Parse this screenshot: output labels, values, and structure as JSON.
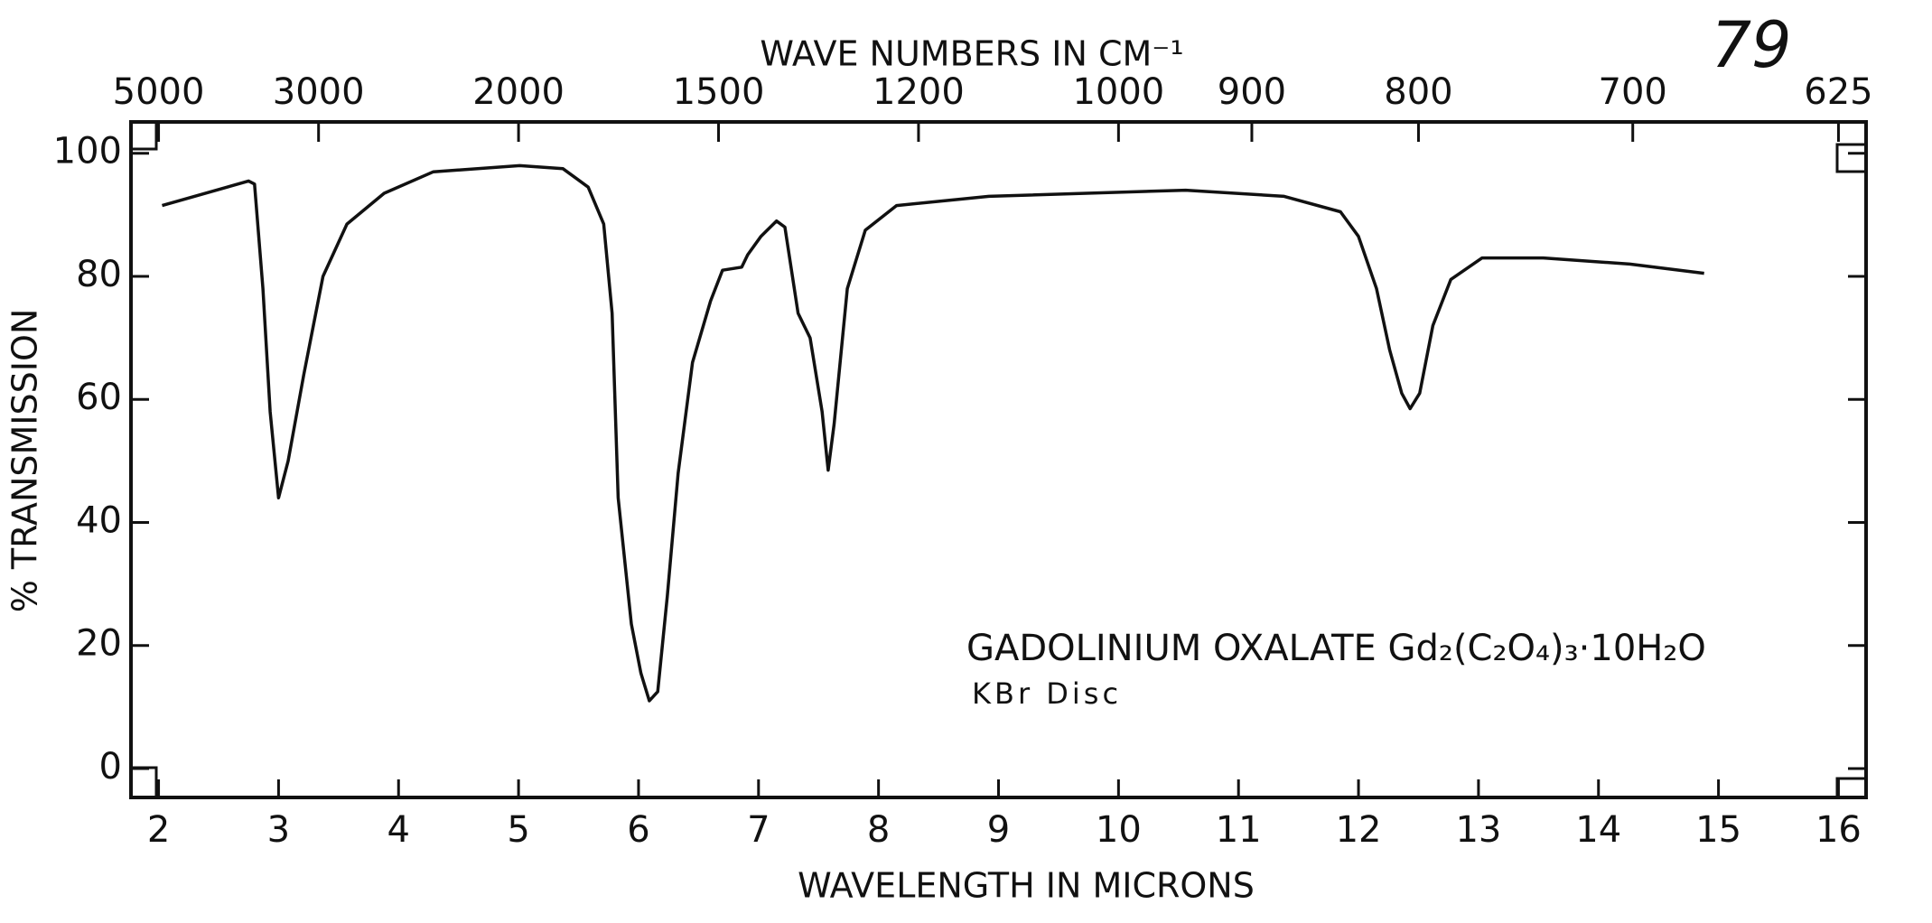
{
  "chart_data": {
    "type": "line",
    "title": "WAVE NUMBERS IN CM⁻¹",
    "x_label": "WAVELENGTH IN MICRONS",
    "y_label": "% TRANSMISSION",
    "annotations": [
      "79",
      "GADOLINIUM OXALATE Gd₂(C₂O₄)₃·10H₂O",
      "KBr Disc"
    ],
    "x": [
      2.03,
      2.75,
      2.8,
      2.87,
      2.93,
      3.0,
      3.08,
      3.21,
      3.37,
      3.57,
      3.88,
      4.29,
      5.01,
      5.37,
      5.58,
      5.71,
      5.78,
      5.83,
      5.94,
      6.02,
      6.09,
      6.16,
      6.24,
      6.33,
      6.45,
      6.6,
      6.7,
      6.86,
      6.91,
      7.02,
      7.15,
      7.22,
      7.33,
      7.43,
      7.53,
      7.58,
      7.63,
      7.74,
      7.89,
      8.15,
      8.92,
      10.56,
      11.38,
      11.85,
      12.0,
      12.15,
      12.26,
      12.36,
      12.43,
      12.51,
      12.62,
      12.77,
      13.03,
      13.54,
      14.26,
      14.88
    ],
    "values": [
      91.5,
      95.5,
      95,
      78,
      58,
      44,
      50,
      64,
      80,
      88.5,
      93.5,
      97,
      98,
      97.5,
      94.5,
      88.5,
      74,
      44,
      23.5,
      15.5,
      11,
      12.5,
      28,
      48,
      66,
      76,
      81,
      81.5,
      83.5,
      86.5,
      89,
      88,
      74,
      70,
      58,
      48.5,
      56,
      78,
      87.5,
      91.5,
      93,
      94,
      93,
      90.5,
      86.5,
      78,
      68,
      61,
      58.5,
      61,
      72,
      79.5,
      83,
      83,
      82,
      80.5
    ],
    "color": "#111111",
    "xlim": [
      1.77,
      16.23
    ],
    "ylim": [
      -4.7,
      105.1
    ],
    "xticks": [
      2,
      3,
      4,
      5,
      6,
      7,
      8,
      9,
      10,
      11,
      12,
      13,
      14,
      15,
      16
    ],
    "yticks": [
      0,
      20,
      40,
      60,
      80,
      100
    ],
    "x2ticks": [
      5000,
      3000,
      2000,
      1500,
      1200,
      1000,
      900,
      800,
      700,
      625
    ]
  }
}
